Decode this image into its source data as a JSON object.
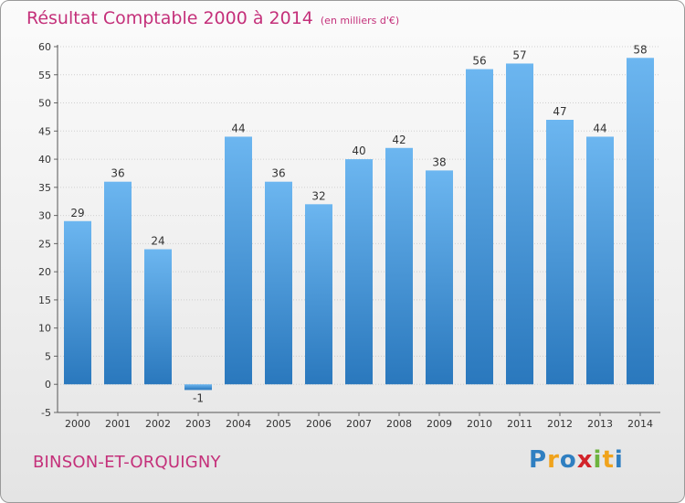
{
  "header": {
    "title": "Résultat Comptable 2000 à 2014",
    "subtitle": "(en milliers d'€)"
  },
  "footer": {
    "commune": "BINSON-ET-ORQUIGNY",
    "logo": {
      "letters": [
        "P",
        "r",
        "o",
        "x",
        "i",
        "t",
        "i"
      ],
      "colors": [
        "#2f7fc1",
        "#f0a31c",
        "#2f7fc1",
        "#d2232a",
        "#6db33f",
        "#f0a31c",
        "#2f7fc1"
      ]
    }
  },
  "colors": {
    "bar": "#4a9ee0",
    "bar_light": "#6cb6f0",
    "bar_dark": "#2a78bd",
    "text": "#c4307a",
    "grid": "#cfcfcf"
  },
  "chart_data": {
    "type": "bar",
    "title": "Résultat Comptable 2000 à 2014",
    "subtitle": "(en milliers d'€)",
    "categories": [
      "2000",
      "2001",
      "2002",
      "2003",
      "2004",
      "2005",
      "2006",
      "2007",
      "2008",
      "2009",
      "2010",
      "2011",
      "2012",
      "2013",
      "2014"
    ],
    "values": [
      29,
      36,
      24,
      -1,
      44,
      36,
      32,
      40,
      42,
      38,
      56,
      57,
      47,
      44,
      58
    ],
    "data_labels": [
      "29",
      "36",
      "24",
      "-1",
      "44",
      "36",
      "32",
      "40",
      "42",
      "38",
      "56",
      "57",
      "47",
      "44",
      "58"
    ],
    "ylim": [
      -5,
      60
    ],
    "yticks": [
      -5,
      0,
      5,
      10,
      15,
      20,
      25,
      30,
      35,
      40,
      45,
      50,
      55,
      60
    ],
    "grid": true
  }
}
